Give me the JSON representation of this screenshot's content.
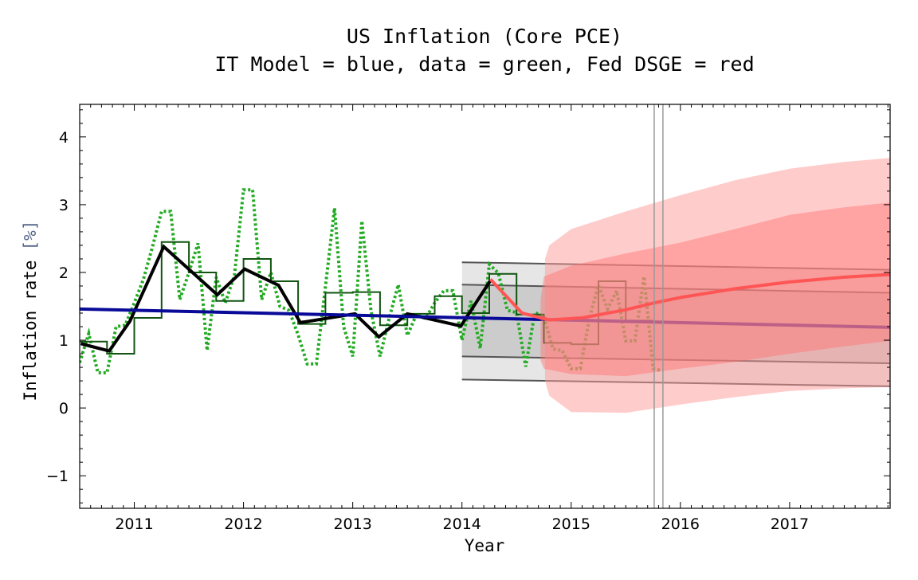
{
  "chart_data": {
    "type": "line",
    "title": "US Inflation (Core PCE)",
    "subtitle": "IT Model = blue, data = green, Fed DSGE = red",
    "xlabel": "Year",
    "ylabel": "Inflation rate",
    "ylabel_unit": "[%]",
    "xlim": [
      2010.5,
      2017.92
    ],
    "ylim": [
      -1.48,
      4.48
    ],
    "x_ticks": [
      2011,
      2012,
      2013,
      2014,
      2015,
      2016,
      2017
    ],
    "y_ticks": [
      -1,
      0,
      1,
      2,
      3,
      4
    ],
    "grid": false,
    "colors": {
      "data_monthly": "#22aa22",
      "data_quarterly": "#115511",
      "data_smoothed": "#000000",
      "it_model": "#0a0a99",
      "it_band_outer": "#e6e6e6",
      "it_band_inner": "#cccccc",
      "it_band_lines": "#555555",
      "fed_dsge": "#ff5555",
      "fed_band_outer": "#ff9a9a",
      "fed_band_inner": "#ff7070",
      "vertical_markers": "#999999"
    },
    "series": [
      {
        "key": "data_monthly",
        "style": "dotted",
        "x_start": 2010.5,
        "x_step_months": 1,
        "values": [
          0.67,
          1.1,
          0.52,
          0.52,
          1.2,
          1.22,
          1.55,
          1.9,
          2.38,
          2.9,
          2.9,
          1.6,
          2.0,
          2.43,
          0.85,
          1.93,
          1.55,
          1.96,
          3.22,
          3.22,
          1.6,
          2.0,
          1.5,
          1.44,
          1.08,
          0.65,
          0.65,
          1.79,
          2.95,
          1.2,
          0.76,
          2.76,
          1.44,
          0.76,
          1.32,
          1.82,
          1.07,
          1.38,
          1.32,
          1.55,
          1.73,
          1.73,
          1.0,
          1.58,
          0.88,
          2.12,
          1.99,
          1.44,
          1.41,
          0.61,
          1.41,
          1.35,
          0.87,
          0.85,
          0.58,
          0.58,
          1.32,
          1.81,
          1.46,
          1.73,
          0.99,
          0.99,
          1.94,
          0.58,
          0.55
        ]
      },
      {
        "key": "data_quarterly",
        "style": "step",
        "x_start": 2010.5,
        "x_step_years": 0.25,
        "values": [
          0.98,
          0.8,
          1.33,
          2.45,
          2.0,
          1.58,
          2.2,
          1.87,
          1.24,
          1.7,
          1.71,
          1.22,
          1.39,
          1.65,
          1.4,
          1.98,
          1.38,
          0.96,
          0.94,
          1.87,
          1.29
        ]
      },
      {
        "key": "data_smoothed",
        "style": "thick",
        "points": [
          [
            2010.51,
            0.95
          ],
          [
            2010.77,
            0.84
          ],
          [
            2010.96,
            1.28
          ],
          [
            2011.27,
            2.38
          ],
          [
            2011.76,
            1.67
          ],
          [
            2012.01,
            2.05
          ],
          [
            2012.32,
            1.81
          ],
          [
            2012.52,
            1.26
          ],
          [
            2013.02,
            1.39
          ],
          [
            2013.24,
            1.05
          ],
          [
            2013.5,
            1.39
          ],
          [
            2013.99,
            1.21
          ],
          [
            2014.26,
            1.88
          ]
        ]
      },
      {
        "key": "it_model",
        "points": [
          [
            2010.5,
            1.46
          ],
          [
            2017.92,
            1.19
          ]
        ]
      },
      {
        "key": "fed_dsge",
        "points": [
          [
            2014.26,
            1.9
          ],
          [
            2014.55,
            1.4
          ],
          [
            2014.8,
            1.3
          ],
          [
            2015.1,
            1.33
          ],
          [
            2015.5,
            1.45
          ],
          [
            2015.76,
            1.55
          ],
          [
            2016.0,
            1.63
          ],
          [
            2016.5,
            1.76
          ],
          [
            2017.0,
            1.86
          ],
          [
            2017.5,
            1.93
          ],
          [
            2017.92,
            1.97
          ]
        ]
      }
    ],
    "bands": {
      "it_outer": {
        "x": [
          2014.0,
          2017.92
        ],
        "upper": [
          2.15,
          2.04
        ],
        "lower": [
          0.42,
          0.32
        ]
      },
      "it_inner": {
        "x": [
          2014.0,
          2017.92
        ],
        "upper": [
          1.82,
          1.7
        ],
        "lower": [
          0.76,
          0.66
        ]
      },
      "fed_outer": {
        "x": [
          2014.76,
          2014.8,
          2015.0,
          2015.5,
          2016.0,
          2016.5,
          2017.0,
          2017.5,
          2017.92
        ],
        "upper": [
          2.2,
          2.4,
          2.64,
          2.9,
          3.14,
          3.36,
          3.53,
          3.63,
          3.69
        ],
        "lower": [
          0.4,
          0.18,
          -0.06,
          -0.07,
          0.05,
          0.16,
          0.25,
          0.29,
          0.31
        ]
      },
      "fed_inner": {
        "x": [
          2014.72,
          2014.75,
          2015.0,
          2015.5,
          2016.0,
          2016.5,
          2017.0,
          2017.5,
          2017.92
        ],
        "upper": [
          1.6,
          1.94,
          2.1,
          2.28,
          2.44,
          2.64,
          2.85,
          2.96,
          3.03
        ],
        "lower": [
          0.7,
          0.58,
          0.5,
          0.47,
          0.58,
          0.68,
          0.8,
          0.91,
          0.99
        ]
      }
    },
    "vertical_markers": [
      2015.76,
      2015.84
    ]
  }
}
